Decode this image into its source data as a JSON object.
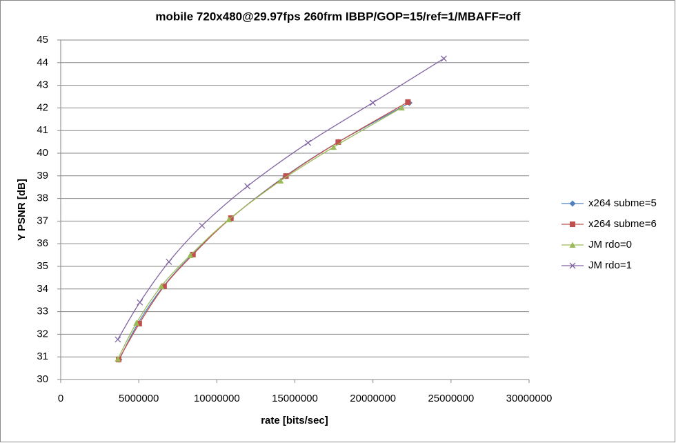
{
  "chart_data": {
    "type": "scatter",
    "title": "mobile 720x480@29.97fps  260frm IBBP/GOP=15/ref=1/MBAFF=off",
    "x_label": "rate [bits/sec]",
    "y_label": "Y PSNR [dB]",
    "xlim": [
      0,
      30000000
    ],
    "xticks": [
      0,
      5000000,
      10000000,
      15000000,
      20000000,
      25000000,
      30000000
    ],
    "ylim": [
      30,
      45
    ],
    "yticks": [
      30,
      31,
      32,
      33,
      34,
      35,
      36,
      37,
      38,
      39,
      40,
      41,
      42,
      43,
      44,
      45
    ],
    "grid": true,
    "legend": "right",
    "series": [
      {
        "name": "x264 subme=5",
        "color": "#4f81bd",
        "marker": "diamond",
        "x": [
          3750000,
          4940000,
          6580000,
          8430000,
          10900000,
          14390000,
          17780000,
          22330000
        ],
        "values": [
          30.88,
          32.47,
          34.12,
          35.52,
          37.13,
          38.99,
          40.49,
          42.22
        ]
      },
      {
        "name": "x264 subme=6",
        "color": "#c0504d",
        "marker": "square",
        "x": [
          3710000,
          5030000,
          6620000,
          8470000,
          10900000,
          14430000,
          17780000,
          22240000
        ],
        "values": [
          30.88,
          32.47,
          34.12,
          35.52,
          37.13,
          38.99,
          40.49,
          42.26
        ]
      },
      {
        "name": "JM rdo=0",
        "color": "#9bbb59",
        "marker": "triangle",
        "x": [
          3660000,
          4850000,
          6440000,
          8300000,
          10770000,
          14080000,
          17480000,
          21840000
        ],
        "values": [
          30.91,
          32.5,
          34.12,
          35.49,
          37.07,
          38.78,
          40.27,
          42.01
        ]
      },
      {
        "name": "JM rdo=1",
        "color": "#8064a2",
        "marker": "x",
        "x": [
          3660000,
          5070000,
          6930000,
          9050000,
          11960000,
          15840000,
          19990000,
          24540000
        ],
        "values": [
          31.77,
          33.41,
          35.2,
          36.8,
          38.54,
          40.46,
          42.23,
          44.18
        ]
      }
    ]
  }
}
